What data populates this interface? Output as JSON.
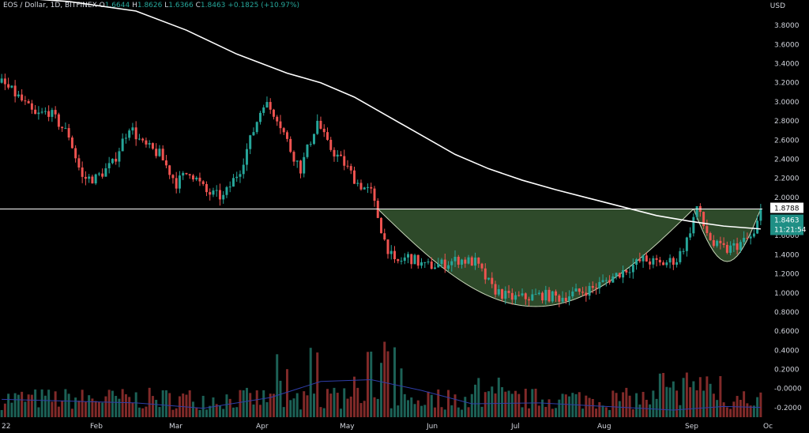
{
  "header": {
    "symbol": "EOS / Dollar, 1D, BITFINEX",
    "open_label": "O",
    "open": "1.6644",
    "high_label": "H",
    "high": "1.8626",
    "low_label": "L",
    "low": "1.6366",
    "close_label": "C",
    "close": "1.8463",
    "change": "+0.1825 (+10.97%)"
  },
  "axis": {
    "currency": "USD"
  },
  "price_tags": {
    "level": "1.8788",
    "last": "1.8463",
    "countdown": "11:21:54"
  },
  "colors": {
    "background": "#000000",
    "up": "#26a69a",
    "down": "#ef5350",
    "ma": "#ffffff",
    "volume_ma": "#2f3ea8",
    "pattern_fill": "#2e4a2a",
    "text": "#d1d4dc"
  },
  "chart_data": {
    "type": "candlestick",
    "title": "EOS / Dollar, 1D, BITFINEX",
    "x_tick_labels": [
      "22",
      "Feb",
      "Mar",
      "Apr",
      "May",
      "Jun",
      "Jul",
      "Aug",
      "Sep",
      "Oc"
    ],
    "y_tick_labels": [
      "3.8000",
      "3.6000",
      "3.4000",
      "3.2000",
      "3.0000",
      "2.8000",
      "2.6000",
      "2.4000",
      "2.2000",
      "2.0000",
      "1.6000",
      "1.4000",
      "1.2000",
      "1.0000",
      "0.8000",
      "0.6000",
      "0.4000",
      "0.2000",
      "-0.0000",
      "-0.2000"
    ],
    "price_range": [
      -0.3,
      3.95
    ],
    "price_path": [
      [
        0,
        3.2
      ],
      [
        5,
        3.05
      ],
      [
        10,
        2.85
      ],
      [
        14,
        2.9
      ],
      [
        20,
        2.65
      ],
      [
        24,
        2.2
      ],
      [
        28,
        2.2
      ],
      [
        33,
        2.35
      ],
      [
        38,
        2.75
      ],
      [
        42,
        2.55
      ],
      [
        47,
        2.45
      ],
      [
        52,
        2.15
      ],
      [
        56,
        2.28
      ],
      [
        61,
        2.05
      ],
      [
        66,
        2.0
      ],
      [
        71,
        2.3
      ],
      [
        75,
        2.7
      ],
      [
        78,
        3.0
      ],
      [
        82,
        2.85
      ],
      [
        86,
        2.5
      ],
      [
        89,
        2.3
      ],
      [
        94,
        2.8
      ],
      [
        97,
        2.55
      ],
      [
        102,
        2.35
      ],
      [
        106,
        2.15
      ],
      [
        110,
        2.05
      ],
      [
        114,
        1.55
      ],
      [
        117,
        1.3
      ],
      [
        121,
        1.38
      ],
      [
        126,
        1.28
      ],
      [
        131,
        1.3
      ],
      [
        136,
        1.35
      ],
      [
        141,
        1.32
      ],
      [
        146,
        1.05
      ],
      [
        151,
        0.95
      ],
      [
        156,
        0.95
      ],
      [
        161,
        0.98
      ],
      [
        166,
        0.95
      ],
      [
        171,
        1.0
      ],
      [
        176,
        1.05
      ],
      [
        181,
        1.15
      ],
      [
        186,
        1.25
      ],
      [
        191,
        1.35
      ],
      [
        196,
        1.3
      ],
      [
        201,
        1.35
      ],
      [
        204,
        1.55
      ],
      [
        207,
        1.9
      ],
      [
        209,
        1.7
      ],
      [
        212,
        1.5
      ],
      [
        216,
        1.45
      ],
      [
        220,
        1.52
      ],
      [
        224,
        1.6
      ],
      [
        226,
        1.85
      ]
    ],
    "sma": [
      [
        0,
        4.1
      ],
      [
        20,
        4.05
      ],
      [
        40,
        3.95
      ],
      [
        55,
        3.75
      ],
      [
        70,
        3.5
      ],
      [
        85,
        3.3
      ],
      [
        95,
        3.2
      ],
      [
        105,
        3.05
      ],
      [
        115,
        2.85
      ],
      [
        125,
        2.65
      ],
      [
        135,
        2.45
      ],
      [
        145,
        2.3
      ],
      [
        155,
        2.18
      ],
      [
        165,
        2.08
      ],
      [
        175,
        1.99
      ],
      [
        185,
        1.9
      ],
      [
        195,
        1.81
      ],
      [
        205,
        1.75
      ],
      [
        215,
        1.7
      ],
      [
        226,
        1.67
      ]
    ],
    "level_line": 1.8788,
    "volume": {
      "max_value": 1.0,
      "ma_path": [
        [
          0,
          0.2
        ],
        [
          20,
          0.18
        ],
        [
          40,
          0.16
        ],
        [
          60,
          0.1
        ],
        [
          80,
          0.22
        ],
        [
          95,
          0.4
        ],
        [
          110,
          0.42
        ],
        [
          125,
          0.3
        ],
        [
          140,
          0.15
        ],
        [
          160,
          0.16
        ],
        [
          180,
          0.12
        ],
        [
          200,
          0.08
        ],
        [
          215,
          0.12
        ],
        [
          226,
          0.11
        ]
      ]
    },
    "grid": false,
    "legend": "none"
  }
}
